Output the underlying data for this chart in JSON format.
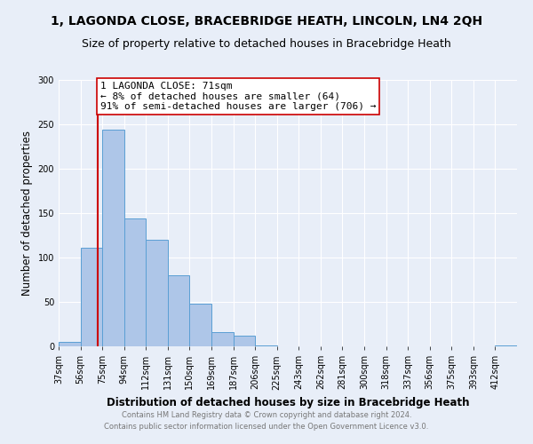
{
  "title": "1, LAGONDA CLOSE, BRACEBRIDGE HEATH, LINCOLN, LN4 2QH",
  "subtitle": "Size of property relative to detached houses in Bracebridge Heath",
  "xlabel": "Distribution of detached houses by size in Bracebridge Heath",
  "ylabel": "Number of detached properties",
  "bin_labels": [
    "37sqm",
    "56sqm",
    "75sqm",
    "94sqm",
    "112sqm",
    "131sqm",
    "150sqm",
    "169sqm",
    "187sqm",
    "206sqm",
    "225sqm",
    "243sqm",
    "262sqm",
    "281sqm",
    "300sqm",
    "318sqm",
    "337sqm",
    "356sqm",
    "375sqm",
    "393sqm",
    "412sqm"
  ],
  "bar_heights": [
    5,
    111,
    244,
    144,
    120,
    80,
    48,
    16,
    12,
    1,
    0,
    0,
    0,
    0,
    0,
    0,
    0,
    0,
    0,
    0,
    1
  ],
  "bar_color": "#aec6e8",
  "bar_edge_color": "#5a9fd4",
  "bin_edges_val": [
    37,
    56,
    75,
    94,
    112,
    131,
    150,
    169,
    187,
    206,
    225,
    243,
    262,
    281,
    300,
    318,
    337,
    356,
    375,
    393,
    412
  ],
  "prop_val": 71,
  "annotation_box_text": "1 LAGONDA CLOSE: 71sqm\n← 8% of detached houses are smaller (64)\n91% of semi-detached houses are larger (706) →",
  "annotation_box_edge_color": "#cc0000",
  "annotation_line_color": "#cc0000",
  "ylim": [
    0,
    300
  ],
  "yticks": [
    0,
    50,
    100,
    150,
    200,
    250,
    300
  ],
  "footer_line1": "Contains HM Land Registry data © Crown copyright and database right 2024.",
  "footer_line2": "Contains public sector information licensed under the Open Government Licence v3.0.",
  "bg_color": "#e8eef8",
  "title_fontsize": 10,
  "subtitle_fontsize": 9,
  "axis_label_fontsize": 8.5,
  "tick_fontsize": 7,
  "annotation_fontsize": 8,
  "footer_fontsize": 6
}
